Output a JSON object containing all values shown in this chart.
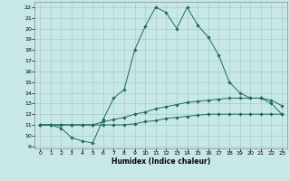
{
  "xlabel": "Humidex (Indice chaleur)",
  "xlim": [
    -0.5,
    23.5
  ],
  "ylim": [
    8.8,
    22.5
  ],
  "xticks": [
    0,
    1,
    2,
    3,
    4,
    5,
    6,
    7,
    8,
    9,
    10,
    11,
    12,
    13,
    14,
    15,
    16,
    17,
    18,
    19,
    20,
    21,
    22,
    23
  ],
  "yticks": [
    9,
    10,
    11,
    12,
    13,
    14,
    15,
    16,
    17,
    18,
    19,
    20,
    21,
    22
  ],
  "bg_color": "#c8e8e8",
  "line_color": "#1a6b5a",
  "line1_x": [
    0,
    1,
    2,
    3,
    4,
    5,
    6,
    7,
    8,
    9,
    10,
    11,
    12,
    13,
    14,
    15,
    16,
    17,
    18,
    19,
    20,
    21,
    22,
    23
  ],
  "line1_y": [
    11.0,
    11.0,
    10.7,
    9.8,
    9.5,
    9.3,
    11.5,
    13.5,
    14.3,
    18.0,
    20.2,
    22.0,
    21.5,
    20.0,
    22.0,
    20.3,
    19.2,
    17.5,
    15.0,
    14.0,
    13.5,
    13.5,
    13.0,
    12.0
  ],
  "line2_x": [
    0,
    1,
    2,
    3,
    4,
    5,
    6,
    7,
    8,
    9,
    10,
    11,
    12,
    13,
    14,
    15,
    16,
    17,
    18,
    19,
    20,
    21,
    22,
    23
  ],
  "line2_y": [
    11.0,
    11.0,
    11.0,
    11.0,
    11.0,
    11.0,
    11.3,
    11.5,
    11.7,
    12.0,
    12.2,
    12.5,
    12.7,
    12.9,
    13.1,
    13.2,
    13.3,
    13.4,
    13.5,
    13.5,
    13.5,
    13.5,
    13.3,
    12.8
  ],
  "line3_x": [
    0,
    1,
    2,
    3,
    4,
    5,
    6,
    7,
    8,
    9,
    10,
    11,
    12,
    13,
    14,
    15,
    16,
    17,
    18,
    19,
    20,
    21,
    22,
    23
  ],
  "line3_y": [
    11.0,
    11.0,
    11.0,
    11.0,
    11.0,
    11.0,
    11.0,
    11.0,
    11.0,
    11.1,
    11.3,
    11.4,
    11.6,
    11.7,
    11.8,
    11.9,
    12.0,
    12.0,
    12.0,
    12.0,
    12.0,
    12.0,
    12.0,
    12.0
  ]
}
